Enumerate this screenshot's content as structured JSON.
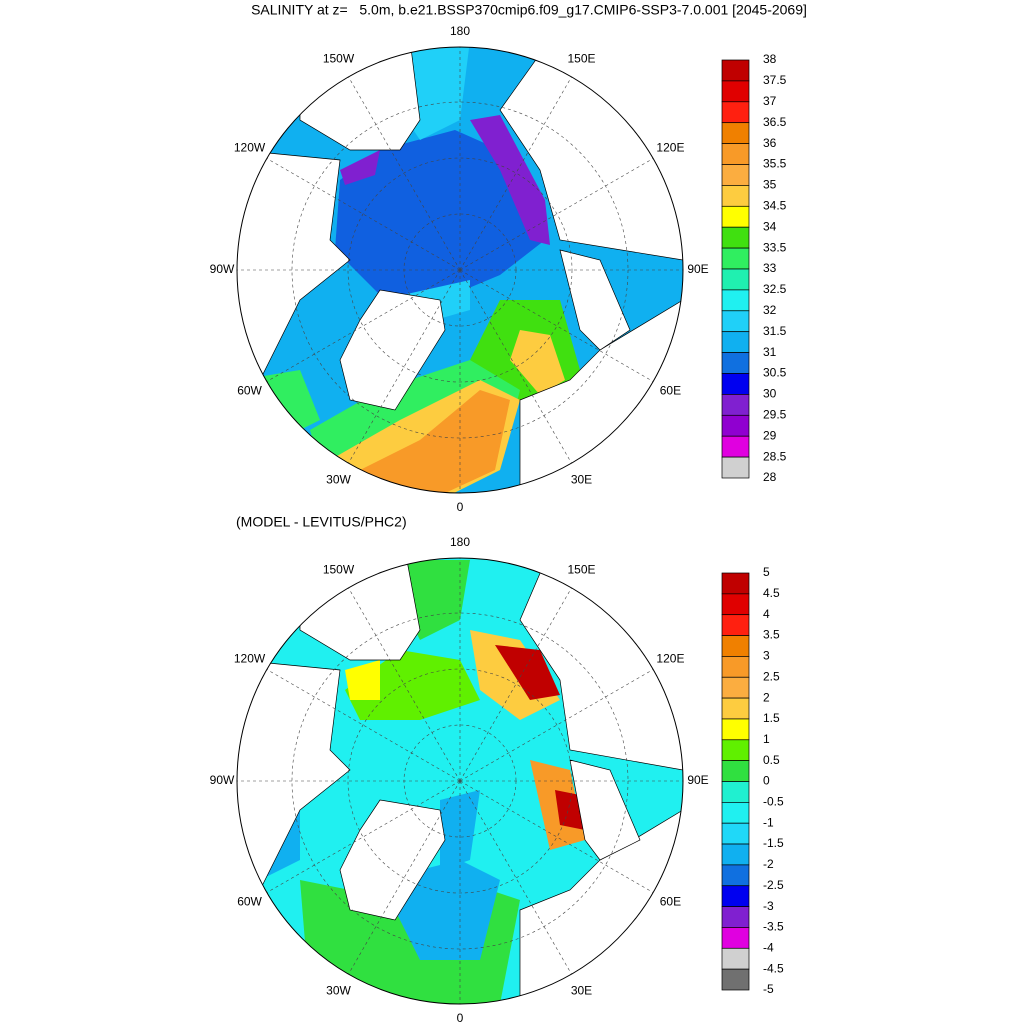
{
  "title": "SALINITY at z=   5.0m, b.e21.BSSP370cmip6.f09_g17.CMIP6-SSP3-7.0.001 [2045-2069]",
  "panels": [
    {
      "lon_labels": [
        "0",
        "30E",
        "60E",
        "90E",
        "120E",
        "150E",
        "180",
        "150W",
        "120W",
        "90W",
        "60W",
        "30W"
      ],
      "colorbar": {
        "levels": [
          38,
          37.5,
          37,
          36.5,
          36,
          35.5,
          35,
          34.5,
          34,
          33.5,
          33,
          32.5,
          32,
          31.5,
          31,
          30.5,
          30,
          29.5,
          29,
          28.5,
          28
        ],
        "colors": [
          "#c00000",
          "#e00000",
          "#ff2010",
          "#f08000",
          "#f89a28",
          "#fbad40",
          "#fdcc40",
          "#ffff00",
          "#40e010",
          "#30ee60",
          "#20f0b0",
          "#20f0f0",
          "#20d0f8",
          "#10b0f0",
          "#1070e0",
          "#0000f0",
          "#8020d0",
          "#9000d0",
          "#e000e0",
          "#d0d0d0"
        ]
      }
    },
    {
      "subtitle": "(MODEL - LEVITUS/PHC2)",
      "lon_labels": [
        "0",
        "30E",
        "60E",
        "90E",
        "120E",
        "150E",
        "180",
        "150W",
        "120W",
        "90W",
        "60W",
        "30W"
      ],
      "colorbar": {
        "levels": [
          5,
          4.5,
          4,
          3.5,
          3,
          2.5,
          2,
          1.5,
          1,
          0.5,
          0,
          -0.5,
          -1,
          -1.5,
          -2,
          -2.5,
          -3,
          -3.5,
          -4,
          -4.5,
          -5
        ],
        "colors": [
          "#c00000",
          "#e00000",
          "#ff2010",
          "#f08000",
          "#f89a28",
          "#fbad40",
          "#fdcc40",
          "#ffff00",
          "#60f000",
          "#30e040",
          "#20f0d0",
          "#20f0f0",
          "#20d8f8",
          "#10b0f0",
          "#1070e0",
          "#0000f0",
          "#8020d0",
          "#e000e0",
          "#d0d0d0",
          "#707070"
        ]
      }
    }
  ]
}
